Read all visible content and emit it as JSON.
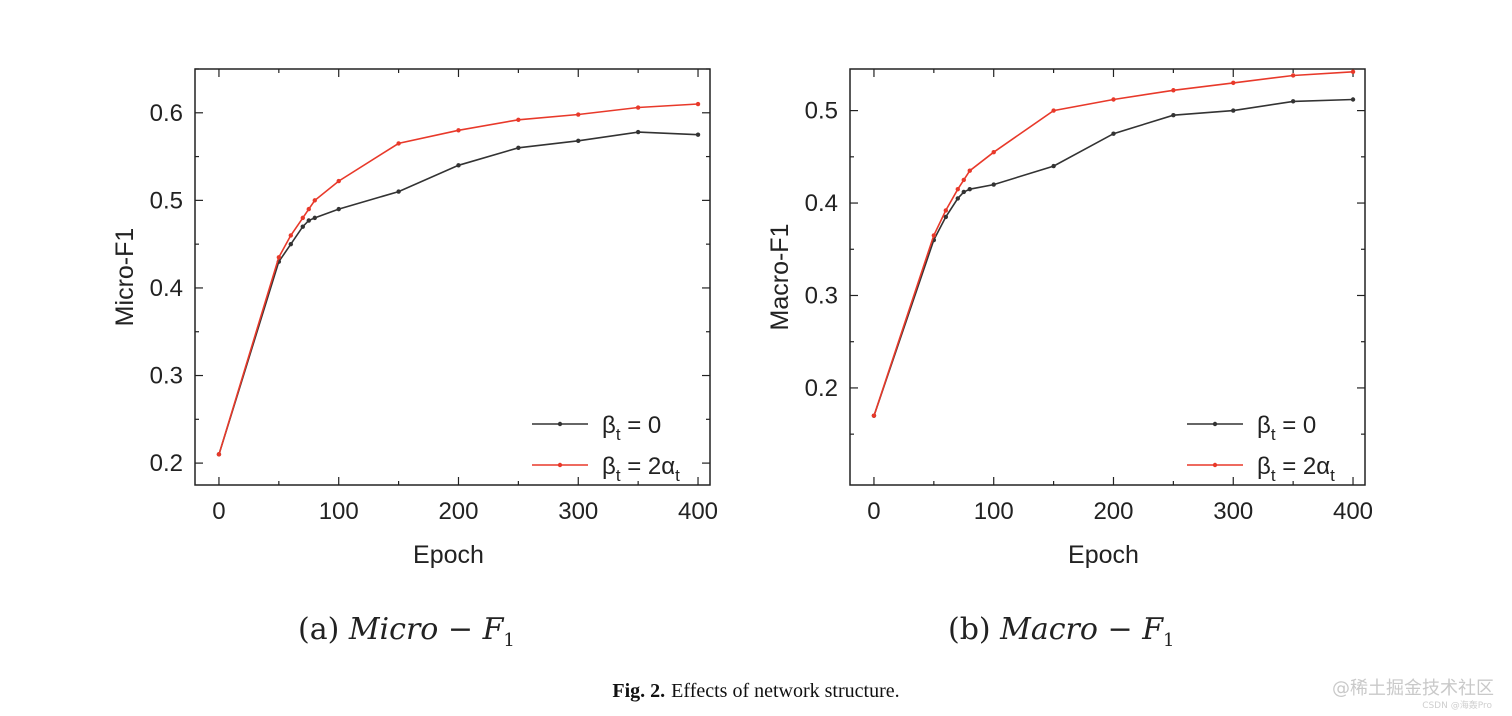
{
  "chart_data": [
    {
      "type": "line",
      "title": "",
      "xlabel": "Epoch",
      "ylabel": "Micro-F1",
      "xlim": [
        -20,
        410
      ],
      "ylim": [
        0.175,
        0.65
      ],
      "xticks": [
        0,
        100,
        200,
        300,
        400
      ],
      "yticks": [
        0.2,
        0.3,
        0.4,
        0.5,
        0.6
      ],
      "xtick_labels": [
        "0",
        "100",
        "200",
        "300",
        "400"
      ],
      "ytick_labels": [
        "0.2",
        "0.3",
        "0.4",
        "0.5",
        "0.6"
      ],
      "legend_position": "bottom-right",
      "x": [
        0,
        50,
        60,
        70,
        75,
        80,
        100,
        150,
        200,
        250,
        300,
        350,
        400
      ],
      "series": [
        {
          "name": "βt = 0",
          "legend_base": "β",
          "legend_sub": "t",
          "legend_rest": " = 0",
          "color": "#333333",
          "values": [
            0.21,
            0.43,
            0.45,
            0.47,
            0.477,
            0.48,
            0.49,
            0.51,
            0.54,
            0.56,
            0.568,
            0.578,
            0.575
          ]
        },
        {
          "name": "βt = 2αt",
          "legend_base": "β",
          "legend_sub": "t",
          "legend_rest": " = 2α",
          "legend_sub2": "t",
          "color": "#e8392a",
          "values": [
            0.21,
            0.435,
            0.46,
            0.48,
            0.49,
            0.5,
            0.522,
            0.565,
            0.58,
            0.592,
            0.598,
            0.606,
            0.61
          ]
        }
      ],
      "sub_caption_label": "(a) ",
      "sub_caption_math": "Micro",
      "sub_caption_minus": " − ",
      "sub_caption_F": "F",
      "sub_caption_sub": "1"
    },
    {
      "type": "line",
      "title": "",
      "xlabel": "Epoch",
      "ylabel": "Macro-F1",
      "xlim": [
        -20,
        410
      ],
      "ylim": [
        0.095,
        0.545
      ],
      "xticks": [
        0,
        100,
        200,
        300,
        400
      ],
      "yticks": [
        0.2,
        0.3,
        0.4,
        0.5
      ],
      "xtick_labels": [
        "0",
        "100",
        "200",
        "300",
        "400"
      ],
      "ytick_labels": [
        "0.2",
        "0.3",
        "0.4",
        "0.5"
      ],
      "legend_position": "bottom-right",
      "x": [
        0,
        50,
        60,
        70,
        75,
        80,
        100,
        150,
        200,
        250,
        300,
        350,
        400
      ],
      "series": [
        {
          "name": "βt = 0",
          "legend_base": "β",
          "legend_sub": "t",
          "legend_rest": " = 0",
          "color": "#333333",
          "values": [
            0.17,
            0.36,
            0.385,
            0.405,
            0.412,
            0.415,
            0.42,
            0.44,
            0.475,
            0.495,
            0.5,
            0.51,
            0.512
          ]
        },
        {
          "name": "βt = 2αt",
          "legend_base": "β",
          "legend_sub": "t",
          "legend_rest": " = 2α",
          "legend_sub2": "t",
          "color": "#e8392a",
          "values": [
            0.17,
            0.365,
            0.392,
            0.415,
            0.425,
            0.435,
            0.455,
            0.5,
            0.512,
            0.522,
            0.53,
            0.538,
            0.542
          ]
        }
      ],
      "sub_caption_label": "(b) ",
      "sub_caption_math": "Macro",
      "sub_caption_minus": " − ",
      "sub_caption_F": "F",
      "sub_caption_sub": "1"
    }
  ],
  "figure_caption": {
    "label": "Fig. 2.",
    "text": "Effects of network structure."
  },
  "watermark": {
    "text": "@稀土掘金技术社区",
    "subtext": "CSDN @海轰Pro"
  }
}
